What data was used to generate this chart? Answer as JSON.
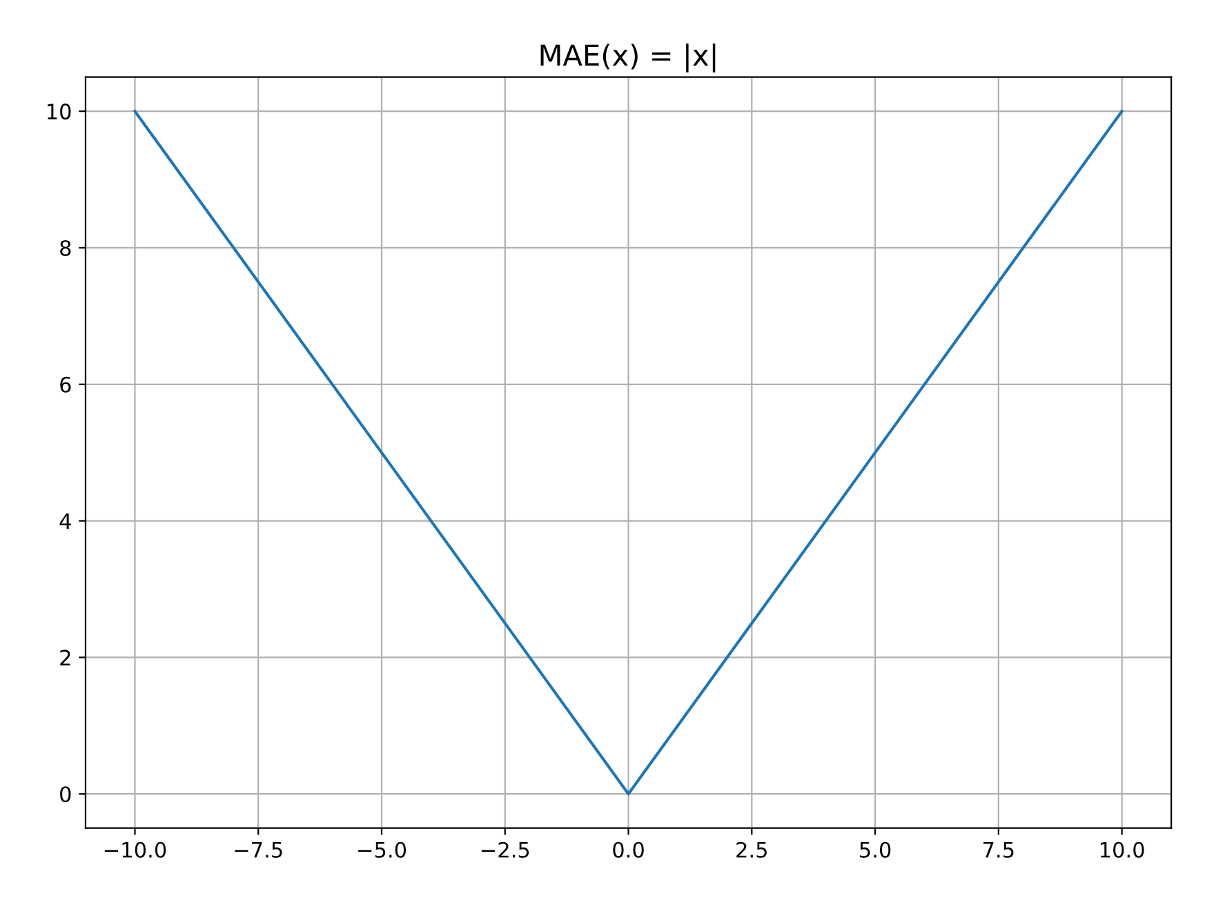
{
  "chart_data": {
    "type": "line",
    "title": "MAE(x) = |x|",
    "x": [
      -10,
      0,
      10
    ],
    "series": [
      {
        "color": "#1f77b4",
        "values": [
          10,
          0,
          10
        ]
      }
    ],
    "xlim": [
      -11,
      11
    ],
    "xticks": [
      {
        "value": -10,
        "label": "−10.0"
      },
      {
        "value": -7.5,
        "label": "−7.5"
      },
      {
        "value": -5,
        "label": "−5.0"
      },
      {
        "value": -2.5,
        "label": "−2.5"
      },
      {
        "value": 0,
        "label": "0.0"
      },
      {
        "value": 2.5,
        "label": "2.5"
      },
      {
        "value": 5,
        "label": "5.0"
      },
      {
        "value": 7.5,
        "label": "7.5"
      },
      {
        "value": 10,
        "label": "10.0"
      }
    ],
    "ylim": [
      -0.5,
      10.5
    ],
    "yticks": [
      0,
      2,
      4,
      6,
      8,
      10
    ],
    "grid": true
  }
}
